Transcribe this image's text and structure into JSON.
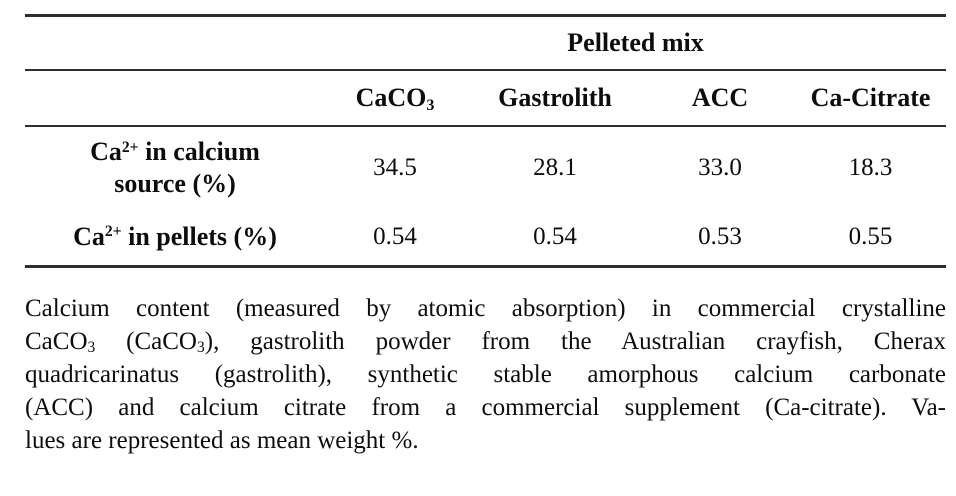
{
  "table": {
    "group_header": "Pelleted mix",
    "column_headers": [
      "CaCO_{3}",
      "Gastrolith",
      "ACC",
      "Ca-Citrate"
    ],
    "rows": [
      {
        "label_lines": [
          "Ca^{2+} in calcium",
          "source (%)"
        ],
        "values": [
          "34.5",
          "28.1",
          "33.0",
          "18.3"
        ]
      },
      {
        "label_lines": [
          "Ca^{2+} in pellets (%)"
        ],
        "values": [
          "0.54",
          "0.54",
          "0.53",
          "0.55"
        ]
      }
    ]
  },
  "caption": {
    "lines": [
      "Calcium content (measured by atomic absorption) in commercial crystalline",
      "CaCO_{3} (CaCO_{3}), gastrolith powder from the Australian crayfish, Cherax",
      "quadricarinatus (gastrolith), synthetic stable amorphous calcium carbonate",
      "(ACC) and calcium citrate from a commercial supplement (Ca-citrate). Va-",
      "lues are represented as mean weight %."
    ]
  },
  "colors": {
    "text": "#0d0d0d",
    "rule": "#2e2e2e",
    "background": "#ffffff"
  }
}
